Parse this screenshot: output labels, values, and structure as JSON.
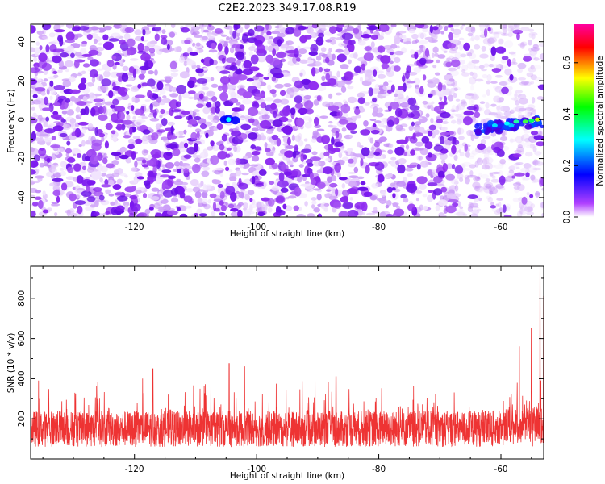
{
  "title": "C2E2.2023.349.17.08.R19",
  "chart_data": [
    {
      "type": "heatmap",
      "xlabel": "Height of straight line (km)",
      "ylabel": "Frequency (Hz)",
      "xlim": [
        -137,
        -53
      ],
      "ylim": [
        -50,
        49
      ],
      "xticks": [
        -120,
        -100,
        -80,
        -60
      ],
      "yticks": [
        -40,
        -20,
        0,
        20,
        40
      ],
      "colorbar": {
        "label": "Normalized spectral amplitude",
        "range": [
          0,
          0.75
        ],
        "ticks": [
          0.0,
          0.2,
          0.4,
          0.6
        ],
        "colors": [
          "#ffffff",
          "#b040ff",
          "#0000ff",
          "#00ffff",
          "#00ff00",
          "#ffff00",
          "#ff0000",
          "#ff00a0"
        ]
      },
      "features": [
        {
          "x": [
            -105,
            -102
          ],
          "y": 0,
          "amplitude": 0.32
        },
        {
          "x": [
            -64,
            -53
          ],
          "y": [
            -5,
            0
          ],
          "amplitude": 0.45
        }
      ]
    },
    {
      "type": "line",
      "xlabel": "Height of straight line (km)",
      "ylabel": "SNR (10 * v/v)",
      "xlim": [
        -137,
        -53
      ],
      "ylim": [
        0,
        960
      ],
      "xticks": [
        -120,
        -100,
        -80,
        -60
      ],
      "yticks": [
        200,
        400,
        600,
        800
      ],
      "series": [
        {
          "color": "#ee3333",
          "baseline_mean": 150,
          "baseline_spread": 90,
          "peaks": [
            {
              "x": -126,
              "y": 380
            },
            {
              "x": -117,
              "y": 450
            },
            {
              "x": -104.5,
              "y": 475
            },
            {
              "x": -102,
              "y": 460
            },
            {
              "x": -87,
              "y": 410
            },
            {
              "x": -57,
              "y": 560
            },
            {
              "x": -55,
              "y": 650
            },
            {
              "x": -53.6,
              "y": 960
            },
            {
              "x": -53,
              "y": 810
            }
          ]
        }
      ]
    }
  ]
}
